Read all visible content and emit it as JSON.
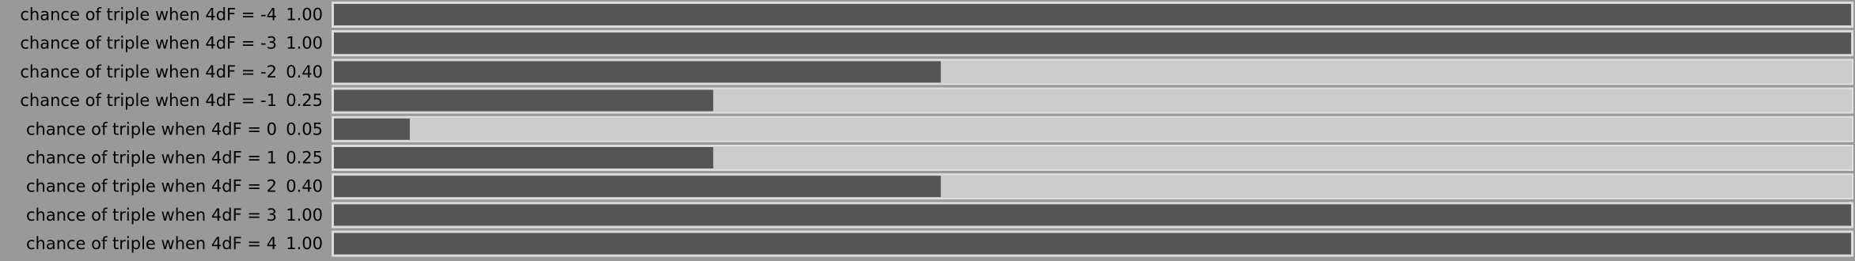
{
  "chart_data": {
    "type": "bar",
    "orientation": "horizontal",
    "categories": [
      "chance of triple when 4dF = -4",
      "chance of triple when 4dF = -3",
      "chance of triple when 4dF = -2",
      "chance of triple when 4dF = -1",
      "chance of triple when 4dF = 0",
      "chance of triple when 4dF = 1",
      "chance of triple when 4dF = 2",
      "chance of triple when 4dF = 3",
      "chance of triple when 4dF = 4"
    ],
    "values": [
      1,
      1,
      0.4,
      0.25,
      0.05,
      0.25,
      0.4,
      1,
      1
    ],
    "value_labels": [
      "1.00",
      "1.00",
      "0.40",
      "0.25",
      "0.05",
      "0.25",
      "0.40",
      "1.00",
      "1.00"
    ],
    "xlim": [
      0,
      1
    ],
    "color": "#555555"
  }
}
